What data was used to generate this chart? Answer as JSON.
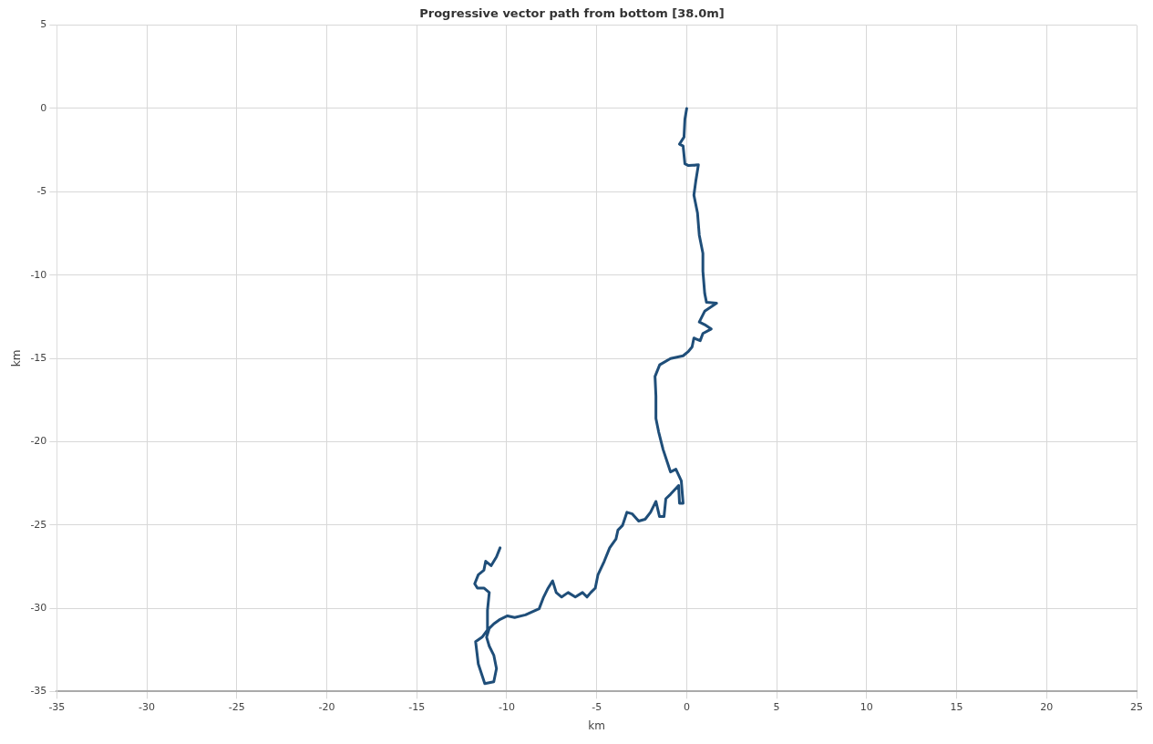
{
  "chart_data": {
    "type": "line",
    "title": "Progressive vector path from bottom [38.0m]",
    "xlabel": "km",
    "ylabel": "km",
    "x": [
      0,
      -0.1,
      -0.15,
      -0.4,
      -0.2,
      -0.1,
      0.1,
      0.65,
      0.5,
      0.4,
      0.6,
      0.7,
      0.9,
      0.9,
      1.0,
      1.1,
      1.66,
      1.0,
      0.7,
      1.0,
      1.36,
      0.9,
      0.75,
      0.4,
      0.3,
      0.1,
      -0.2,
      -0.9,
      -1.5,
      -1.76,
      -1.71,
      -1.71,
      -1.56,
      -1.31,
      -1.06,
      -0.9,
      -0.6,
      -0.3,
      -0.2,
      -0.4,
      -0.45,
      -0.9,
      -1.16,
      -1.26,
      -1.51,
      -1.71,
      -2.01,
      -2.31,
      -2.67,
      -3.02,
      -3.32,
      -3.57,
      -3.82,
      -3.93,
      -4.28,
      -4.58,
      -4.93,
      -5.08,
      -5.33,
      -5.54,
      -5.79,
      -6.19,
      -6.59,
      -6.95,
      -7.25,
      -7.45,
      -7.7,
      -7.95,
      -8.2,
      -8.96,
      -9.56,
      -9.96,
      -10.37,
      -10.72,
      -10.97,
      -11.12,
      -10.97,
      -10.72,
      -10.57,
      -10.72,
      -11.22,
      -11.58,
      -11.73,
      -11.37,
      -11.07,
      -11.07,
      -10.97,
      -11.27,
      -11.63,
      -11.78,
      -11.58,
      -11.27,
      -11.17,
      -10.87,
      -10.57,
      -10.37
    ],
    "series": [
      {
        "color": "#1f4e79",
        "values": [
          0,
          -0.64,
          -1.72,
          -2.14,
          -2.25,
          -3.32,
          -3.43,
          -3.38,
          -4.4,
          -5.2,
          -6.27,
          -7.61,
          -8.69,
          -9.76,
          -11.1,
          -11.64,
          -11.69,
          -12.17,
          -12.82,
          -12.98,
          -13.24,
          -13.51,
          -13.94,
          -13.78,
          -14.32,
          -14.58,
          -14.85,
          -15.01,
          -15.39,
          -16.09,
          -17.27,
          -18.61,
          -19.41,
          -20.48,
          -21.29,
          -21.82,
          -21.66,
          -22.36,
          -23.7,
          -23.7,
          -22.63,
          -23.16,
          -23.43,
          -24.5,
          -24.5,
          -23.59,
          -24.24,
          -24.66,
          -24.77,
          -24.34,
          -24.24,
          -25.04,
          -25.31,
          -25.84,
          -26.38,
          -27.18,
          -27.99,
          -28.79,
          -29.06,
          -29.33,
          -29.06,
          -29.33,
          -29.06,
          -29.33,
          -29.06,
          -28.36,
          -28.79,
          -29.33,
          -30.03,
          -30.4,
          -30.56,
          -30.46,
          -30.67,
          -30.94,
          -31.21,
          -31.74,
          -32.28,
          -32.82,
          -33.62,
          -34.42,
          -34.53,
          -33.35,
          -32.01,
          -31.74,
          -31.31,
          -30.13,
          -29.06,
          -28.79,
          -28.79,
          -28.53,
          -27.99,
          -27.72,
          -27.18,
          -27.45,
          -26.92,
          -26.38
        ]
      }
    ],
    "xlim": [
      -35,
      25
    ],
    "xticks": [
      -35,
      -30,
      -25,
      -20,
      -15,
      -10,
      -5,
      0,
      5,
      10,
      15,
      20,
      25
    ],
    "ylim": [
      -35,
      5
    ],
    "yticks": [
      -35,
      -30,
      -25,
      -20,
      -15,
      -10,
      -5,
      0,
      5
    ],
    "grid": true,
    "legend": false,
    "marker": "none",
    "line_style": "solid"
  }
}
